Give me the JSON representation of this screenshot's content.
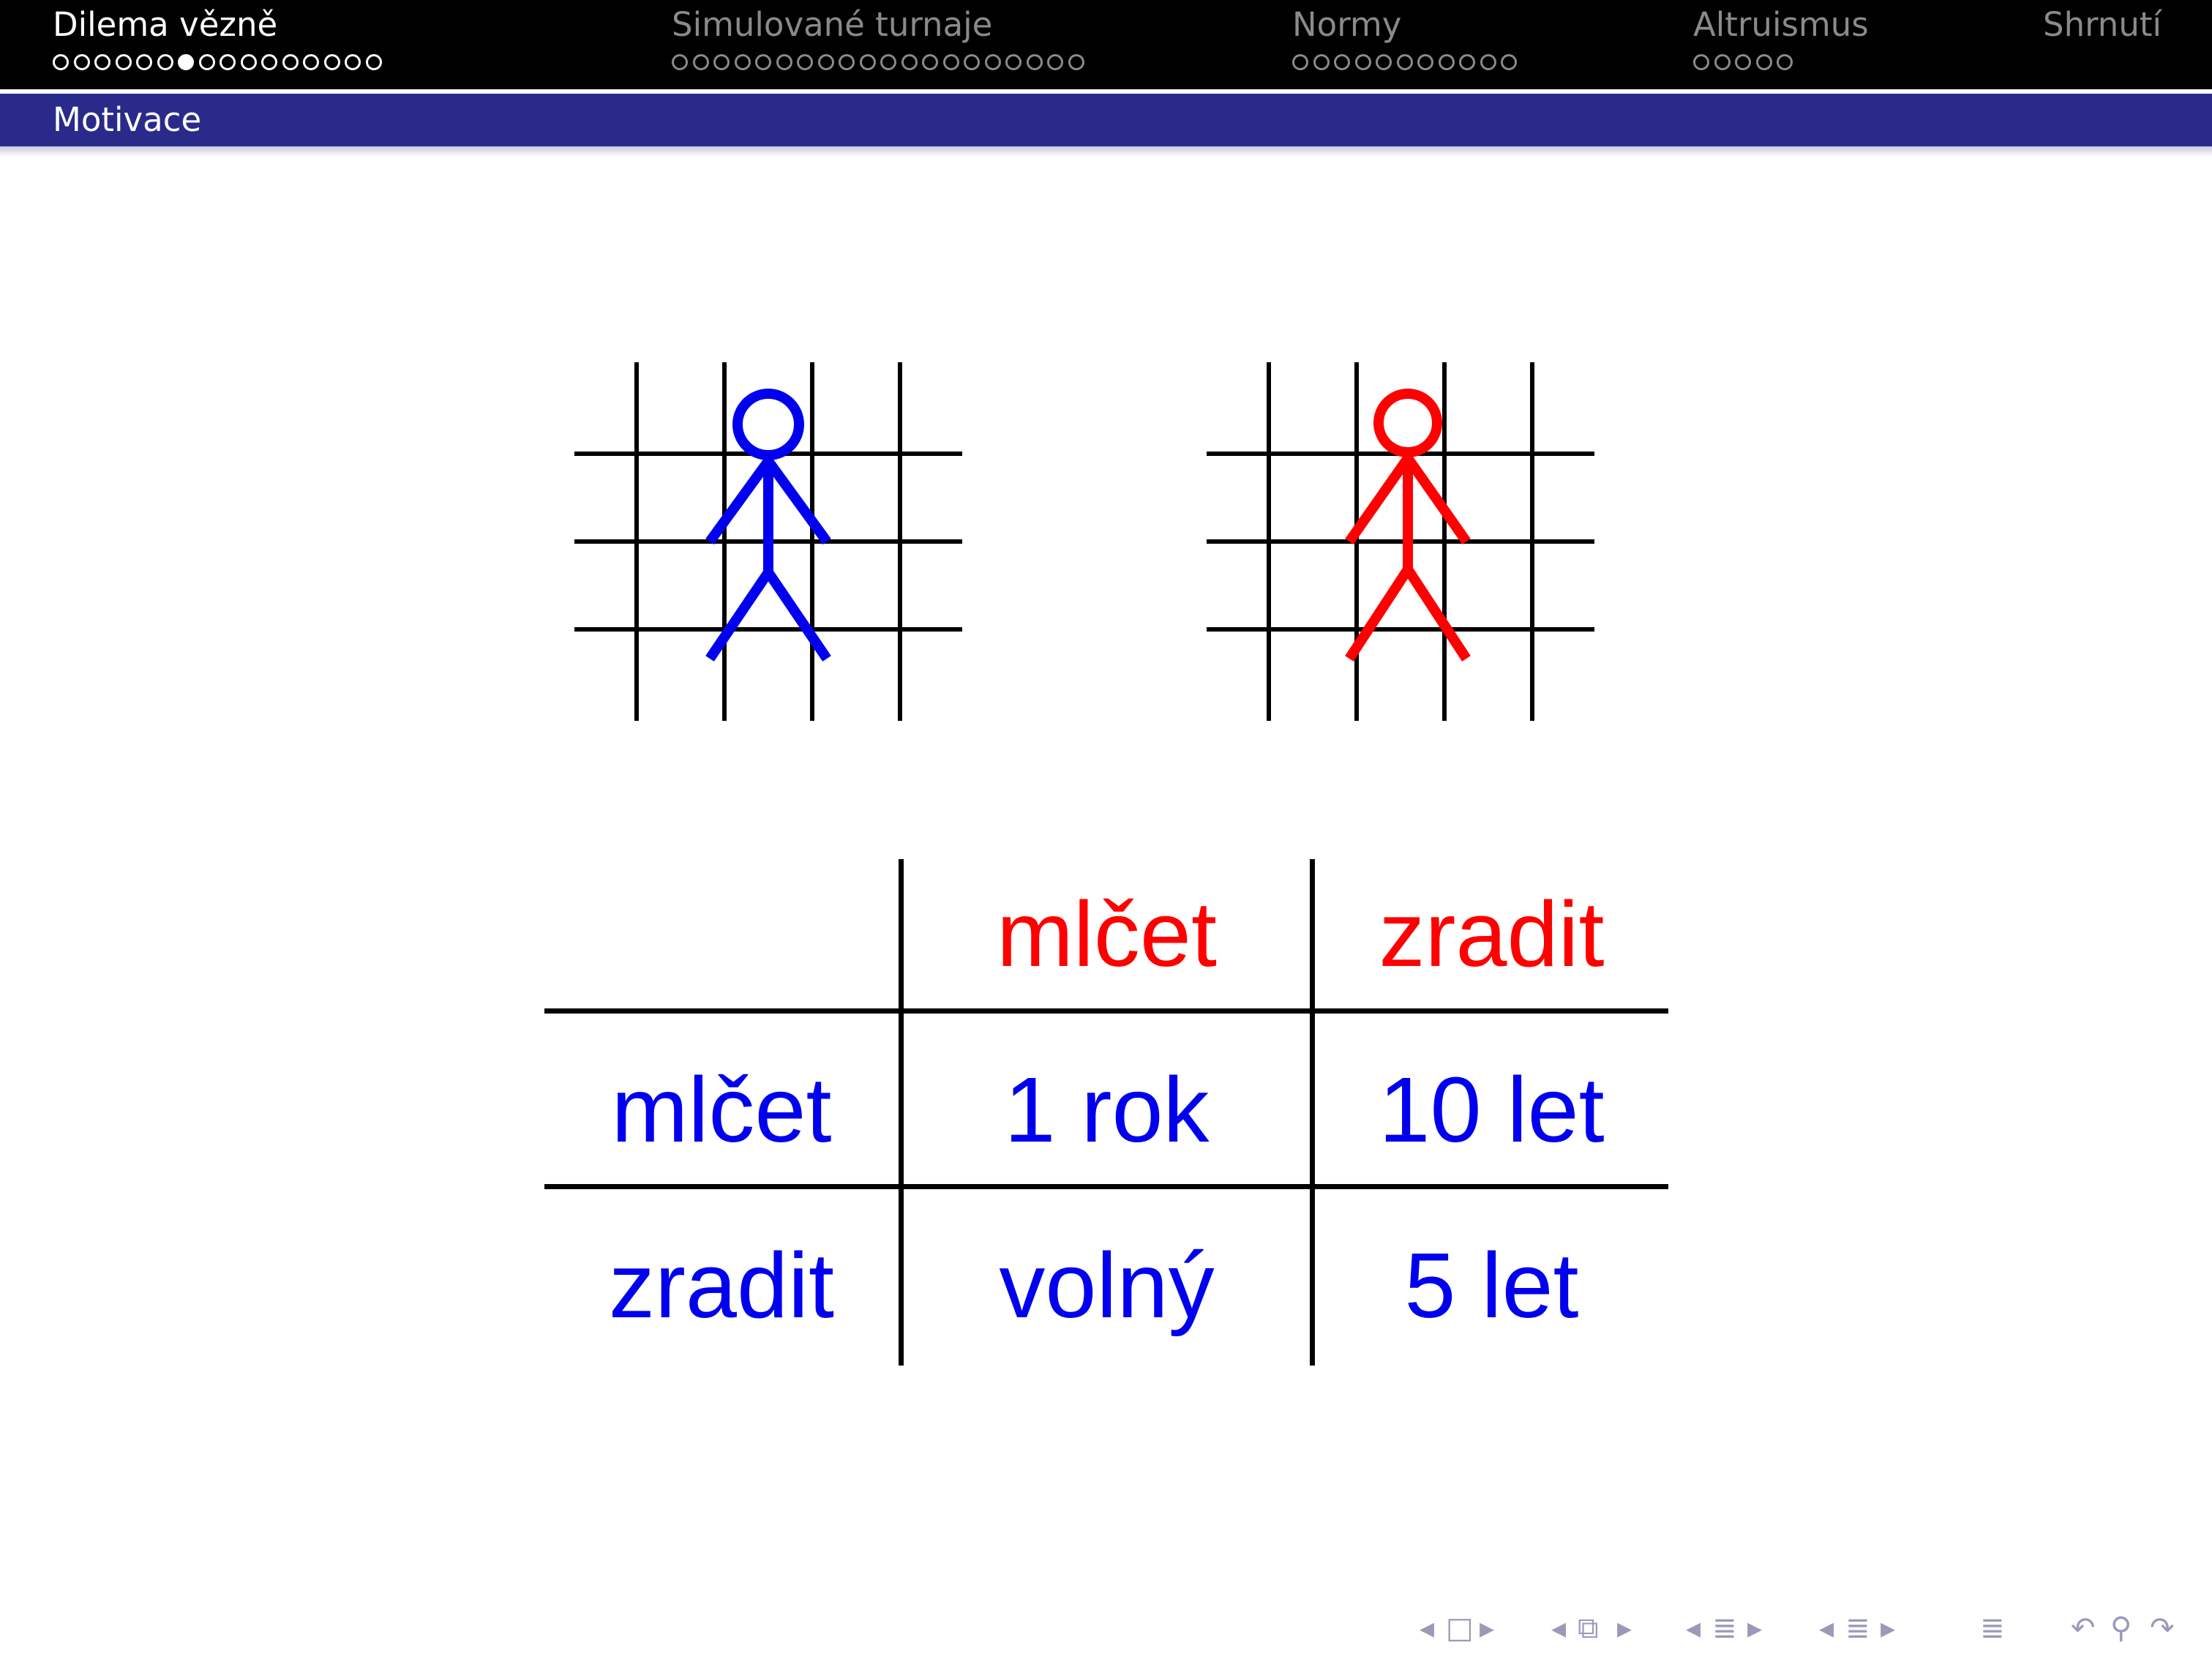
{
  "header": {
    "sections": [
      {
        "title": "Dilema vězně",
        "active": true,
        "dots": 16,
        "current_dot": 6
      },
      {
        "title": "Simulované turnaje",
        "active": false,
        "dots": 20,
        "current_dot": -1
      },
      {
        "title": "Normy",
        "active": false,
        "dots": 11,
        "current_dot": -1
      },
      {
        "title": "Altruismus",
        "active": false,
        "dots": 5,
        "current_dot": -1
      },
      {
        "title": "Shrnutí",
        "active": false,
        "dots": 0,
        "current_dot": -1
      }
    ],
    "subsection": "Motivace"
  },
  "figures": {
    "prisoner_1_color": "#0000ee",
    "prisoner_2_color": "#ff0000",
    "icons": [
      "prisoner-behind-bars-icon",
      "prisoner-behind-bars-icon"
    ]
  },
  "table": {
    "column_headers": [
      "mlčet",
      "zradit"
    ],
    "rows": [
      {
        "label": "mlčet",
        "cells": [
          "1 rok",
          "10 let"
        ]
      },
      {
        "label": "zradit",
        "cells": [
          "volný",
          "5 let"
        ]
      }
    ],
    "header_color": "#ff0000",
    "body_color": "#0000ee"
  },
  "nav": {
    "icons": [
      "nav-frame-prev-icon",
      "nav-frame-icon",
      "nav-frame-next-icon",
      "nav-slide-prev-icon",
      "nav-slide-icon",
      "nav-slide-next-icon",
      "nav-subsection-prev-icon",
      "nav-subsection-icon",
      "nav-subsection-next-icon",
      "nav-section-prev-icon",
      "nav-section-icon",
      "nav-section-next-icon",
      "nav-toc-icon",
      "nav-back-icon",
      "nav-search-icon",
      "nav-forward-icon"
    ]
  }
}
